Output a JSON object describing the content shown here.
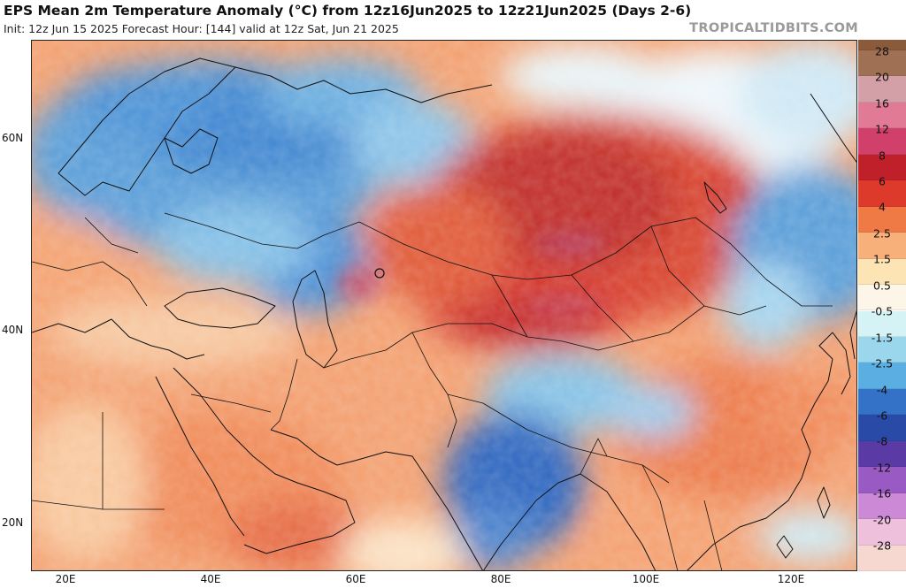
{
  "header": {
    "title": "EPS Mean 2m Temperature Anomaly (°C) from 12z16Jun2025 to 12z21Jun2025 (Days 2-6)",
    "subtitle": "Init: 12z Jun 15 2025   Forecast Hour: [144]   valid at 12z Sat, Jun 21 2025",
    "watermark": "TROPICALTIDBITS.COM"
  },
  "map": {
    "lat_labels": [
      "60N",
      "40N",
      "20N"
    ],
    "lon_labels": [
      "20E",
      "40E",
      "60E",
      "80E",
      "100E",
      "120E"
    ]
  },
  "colorbar": {
    "labels": [
      "28",
      "20",
      "16",
      "12",
      "8",
      "6",
      "4",
      "2.5",
      "1.5",
      "0.5",
      "-0.5",
      "-1.5",
      "-2.5",
      "-4",
      "-6",
      "-8",
      "-12",
      "-16",
      "-20",
      "-28"
    ],
    "colors": [
      "#8a5a3a",
      "#a07055",
      "#d4a0a8",
      "#e07a95",
      "#d0406a",
      "#c0202a",
      "#de3a2c",
      "#f07a45",
      "#f7b07a",
      "#fce4b4",
      "#fdf6e8",
      "#d5f2f4",
      "#9ad6ec",
      "#5aaee2",
      "#3372c6",
      "#2a4aa8",
      "#5a3aa4",
      "#9a5ac4",
      "#cc8ad6",
      "#eec0dc",
      "#f6d8d0"
    ]
  }
}
